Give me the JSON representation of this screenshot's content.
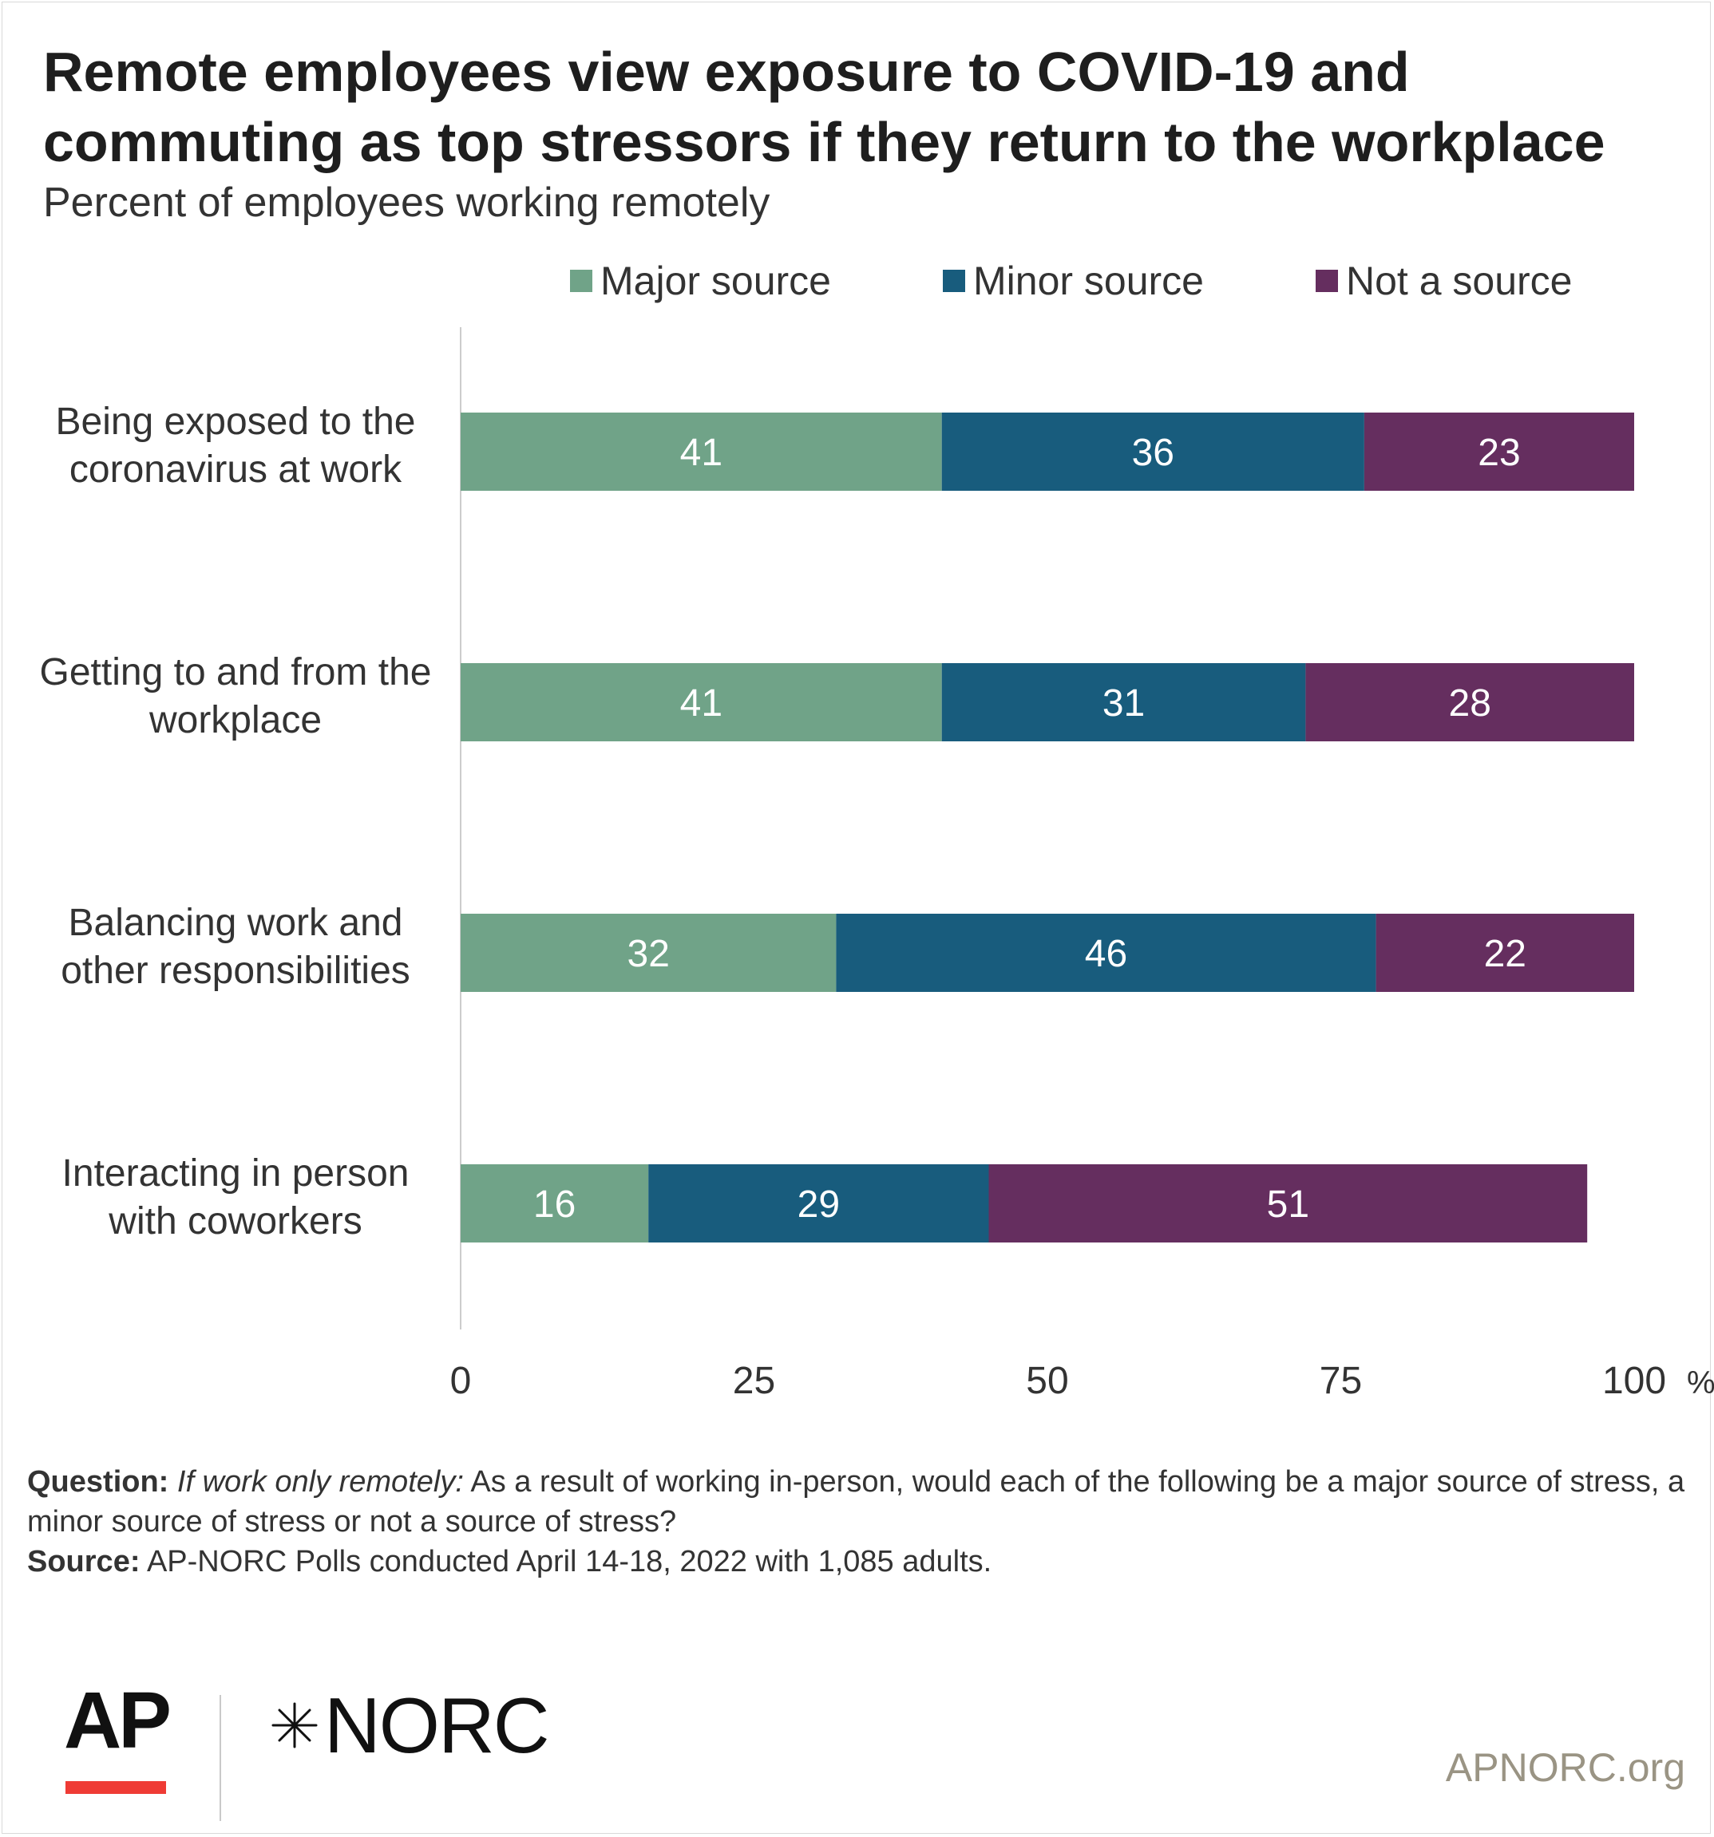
{
  "title": "Remote employees view exposure to COVID-19 and commuting as top stressors if they return to the workplace",
  "subtitle": "Percent of employees working remotely",
  "chart_data": {
    "type": "bar",
    "orientation": "horizontal",
    "stacked": true,
    "categories": [
      [
        "Being exposed to the",
        "coronavirus at work"
      ],
      [
        "Getting to and from the",
        "workplace"
      ],
      [
        "Balancing work and",
        "other responsibilities"
      ],
      [
        "Interacting in person",
        "with coworkers"
      ]
    ],
    "series": [
      {
        "name": "Major source",
        "color": "#70a388",
        "values": [
          41,
          41,
          32,
          16
        ]
      },
      {
        "name": "Minor source",
        "color": "#185c7d",
        "values": [
          36,
          31,
          46,
          29
        ]
      },
      {
        "name": "Not a source",
        "color": "#652e5f",
        "values": [
          23,
          28,
          22,
          51
        ]
      }
    ],
    "xlim": [
      0,
      100
    ],
    "xticks": [
      "0",
      "25",
      "50",
      "75",
      "100"
    ],
    "xunit": "%",
    "grid": false,
    "legend_position": "top"
  },
  "notes": {
    "question_label": "Question:",
    "question_italic": "If work only remotely:",
    "question_text": "As a result of working in-person, would each of the following be a major source of stress, a minor source of stress or not a source of stress?",
    "source_label": "Source:",
    "source_text": "AP-NORC Polls conducted April 14-18, 2022 with 1,085 adults."
  },
  "logos": {
    "ap": "AP",
    "norc": "NORC"
  },
  "website": "APNORC.org"
}
